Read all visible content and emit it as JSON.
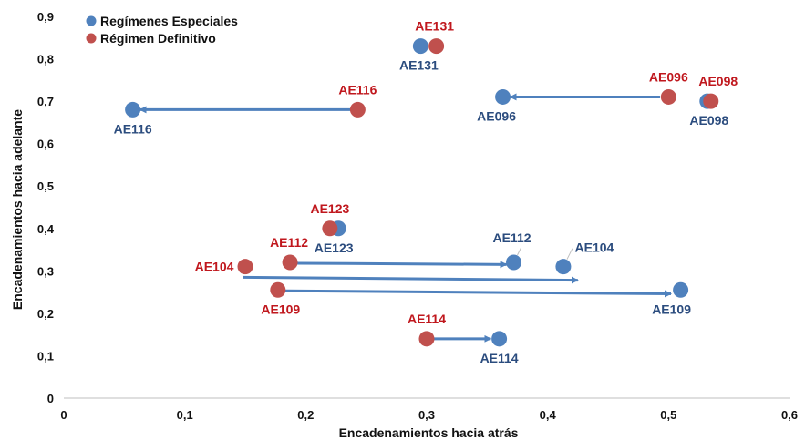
{
  "chart_data": {
    "type": "scatter",
    "xlabel": "Encadenamientos hacia atrás",
    "ylabel": "Encadenamientos hacia adelante",
    "xlim": [
      0,
      0.6
    ],
    "ylim": [
      0,
      0.9
    ],
    "x_ticks": [
      "0",
      "0,1",
      "0,2",
      "0,3",
      "0,4",
      "0,5",
      "0,6"
    ],
    "y_ticks": [
      "0",
      "0,1",
      "0,2",
      "0,3",
      "0,4",
      "0,5",
      "0,6",
      "0,7",
      "0,8",
      "0,9"
    ],
    "grid": false,
    "legend_position": "top-left",
    "colors": {
      "especiales": "#4f81bd",
      "definitivo": "#c0504d",
      "arrow": "#4f81bd"
    },
    "series": [
      {
        "name": "Regímenes Especiales",
        "points": [
          {
            "label": "AE131",
            "x": 0.295,
            "y": 0.83
          },
          {
            "label": "AE116",
            "x": 0.057,
            "y": 0.68
          },
          {
            "label": "AE096",
            "x": 0.363,
            "y": 0.71
          },
          {
            "label": "AE098",
            "x": 0.532,
            "y": 0.7
          },
          {
            "label": "AE123",
            "x": 0.227,
            "y": 0.4
          },
          {
            "label": "AE112",
            "x": 0.372,
            "y": 0.32
          },
          {
            "label": "AE104",
            "x": 0.413,
            "y": 0.31
          },
          {
            "label": "AE109",
            "x": 0.51,
            "y": 0.255
          },
          {
            "label": "AE114",
            "x": 0.36,
            "y": 0.14
          }
        ]
      },
      {
        "name": "Régimen Definitivo",
        "points": [
          {
            "label": "AE131",
            "x": 0.308,
            "y": 0.83
          },
          {
            "label": "AE116",
            "x": 0.243,
            "y": 0.68
          },
          {
            "label": "AE096",
            "x": 0.5,
            "y": 0.71
          },
          {
            "label": "AE098",
            "x": 0.535,
            "y": 0.7
          },
          {
            "label": "AE123",
            "x": 0.22,
            "y": 0.4
          },
          {
            "label": "AE112",
            "x": 0.187,
            "y": 0.32
          },
          {
            "label": "AE104",
            "x": 0.15,
            "y": 0.31
          },
          {
            "label": "AE109",
            "x": 0.177,
            "y": 0.255
          },
          {
            "label": "AE114",
            "x": 0.3,
            "y": 0.14
          }
        ]
      }
    ],
    "arrows": [
      {
        "label": "AE116",
        "from": [
          0.243,
          0.68
        ],
        "to": [
          0.063,
          0.68
        ]
      },
      {
        "label": "AE096",
        "from": [
          0.493,
          0.71
        ],
        "to": [
          0.369,
          0.71
        ]
      },
      {
        "label": "AE112",
        "from": [
          0.192,
          0.318
        ],
        "to": [
          0.366,
          0.315
        ]
      },
      {
        "label": "AE104",
        "from": [
          0.148,
          0.285
        ],
        "to": [
          0.425,
          0.278
        ]
      },
      {
        "label": "AE109",
        "from": [
          0.183,
          0.253
        ],
        "to": [
          0.502,
          0.246
        ]
      },
      {
        "label": "AE114",
        "from": [
          0.305,
          0.14
        ],
        "to": [
          0.353,
          0.14
        ]
      }
    ]
  }
}
